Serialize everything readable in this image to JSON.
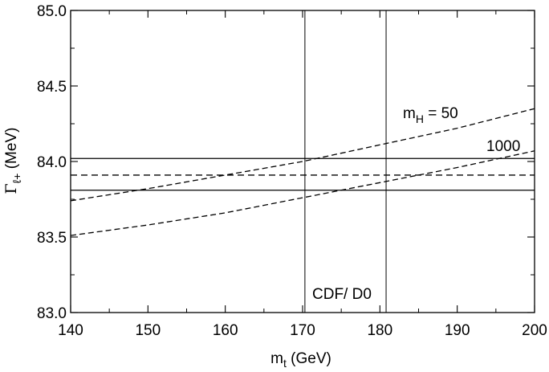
{
  "chart_data": {
    "type": "line",
    "title": "",
    "xlabel": {
      "main": "m",
      "sub": "t",
      "rest": " (GeV)"
    },
    "ylabel": {
      "main": "Γ",
      "sub": "ℓ+",
      "rest": " (MeV)"
    },
    "xlim": [
      140,
      200
    ],
    "ylim": [
      83.0,
      85.0
    ],
    "xticks": [
      140,
      150,
      160,
      170,
      180,
      190,
      200
    ],
    "yticks": [
      "83.0",
      "83.5",
      "84.0",
      "84.5",
      "85.0"
    ],
    "series": [
      {
        "name": "m_H = 50",
        "style": "dashed",
        "x": [
          140,
          150,
          160,
          170,
          180,
          190,
          200
        ],
        "y": [
          83.74,
          83.82,
          83.91,
          84.0,
          84.11,
          84.22,
          84.35
        ]
      },
      {
        "name": "1000",
        "style": "dashed",
        "x": [
          140,
          150,
          160,
          170,
          180,
          190,
          200
        ],
        "y": [
          83.51,
          83.58,
          83.66,
          83.76,
          83.86,
          83.96,
          84.07
        ]
      }
    ],
    "hlines": [
      {
        "name": "measured-upper",
        "y": 84.02,
        "style": "solid"
      },
      {
        "name": "measured-central",
        "y": 83.91,
        "style": "dashed"
      },
      {
        "name": "measured-lower",
        "y": 83.81,
        "style": "solid"
      }
    ],
    "vlines": [
      {
        "name": "cdf-d0-lower",
        "x": 170.3,
        "style": "solid"
      },
      {
        "name": "cdf-d0-upper",
        "x": 180.8,
        "style": "solid"
      }
    ],
    "annotations": {
      "mh50": {
        "main": "m",
        "sub": "H",
        "rest": " = 50"
      },
      "mh1000": "1000",
      "cdfd0": "CDF/ D0"
    }
  }
}
